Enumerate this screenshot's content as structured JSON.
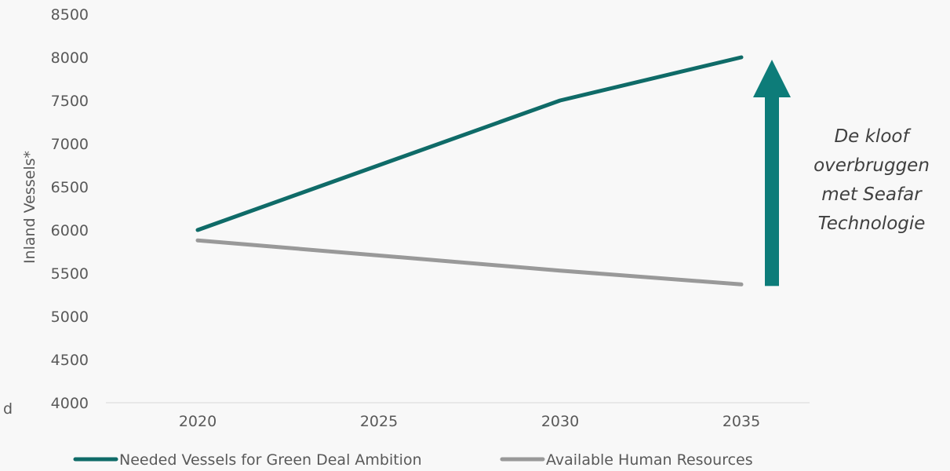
{
  "chart_data": {
    "type": "line",
    "x": [
      2020,
      2030,
      2035
    ],
    "x_ticks": [
      "2020",
      "2025",
      "2030",
      "2035"
    ],
    "y_ticks": [
      "4000",
      "4500",
      "5000",
      "5500",
      "6000",
      "6500",
      "7000",
      "7500",
      "8000",
      "8500"
    ],
    "ylim": [
      4000,
      8500
    ],
    "ylabel": "Inland Vessels*",
    "xlabel": "",
    "series": [
      {
        "name": "Needed Vessels for Green Deal Ambition",
        "x": [
          2020,
          2030,
          2035
        ],
        "values": [
          6000,
          7500,
          8000
        ],
        "color": "#0f6b68"
      },
      {
        "name": "Available Human Resources",
        "x": [
          2020,
          2030,
          2035
        ],
        "values": [
          5880,
          5530,
          5370
        ],
        "color": "#999999"
      }
    ],
    "annotation": {
      "lines": [
        "De kloof",
        "overbruggen",
        "met Seafar",
        "Technologie"
      ],
      "arrow_color": "#0d7c79"
    },
    "edge_text": "d",
    "grid": false,
    "legend_position": "bottom"
  }
}
